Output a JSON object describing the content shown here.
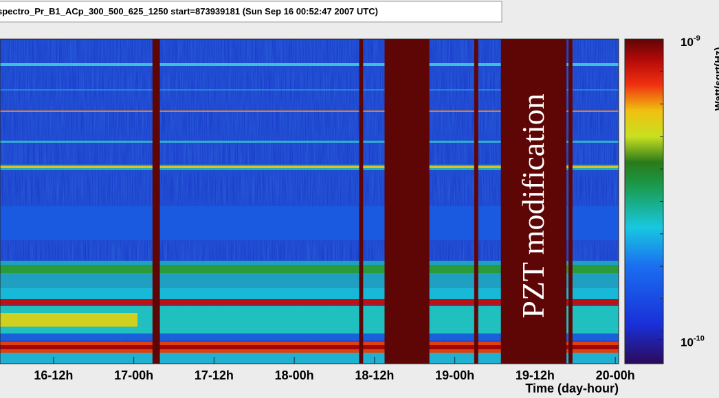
{
  "chart_data": {
    "type": "spectrogram",
    "title": "spectro_Pr_B1_ACp_300_500_625_1250 start=873939181 (Sun Sep 16 00:52:47 2007 UTC)",
    "xlabel": "Time (day-hour)",
    "zlabel": "Watt/sqrt(Hz)",
    "annotation": "PZT modification",
    "xlim": [
      4,
      96.5
    ],
    "xticks": [
      {
        "value": 12,
        "label": "16-12h"
      },
      {
        "value": 24,
        "label": "17-00h"
      },
      {
        "value": 36,
        "label": "17-12h"
      },
      {
        "value": 48,
        "label": "18-00h"
      },
      {
        "value": 60,
        "label": "18-12h"
      },
      {
        "value": 72,
        "label": "19-00h"
      },
      {
        "value": 84,
        "label": "19-12h"
      },
      {
        "value": 96,
        "label": "20-00h"
      }
    ],
    "zscale": "log",
    "zlim": [
      8.3e-11,
      1e-09
    ],
    "zticks": [
      {
        "value": 1e-09,
        "label": "10",
        "exponent": "-9"
      },
      {
        "value": 1e-10,
        "label": "10",
        "exponent": "-10"
      }
    ],
    "gap_color": "#5e0606",
    "gaps": [
      [
        26.8,
        27.9
      ],
      [
        57.7,
        58.3
      ],
      [
        61.5,
        68.2
      ],
      [
        74.9,
        75.5
      ],
      [
        78.9,
        88.7
      ],
      [
        89.0,
        89.6
      ]
    ]
  }
}
